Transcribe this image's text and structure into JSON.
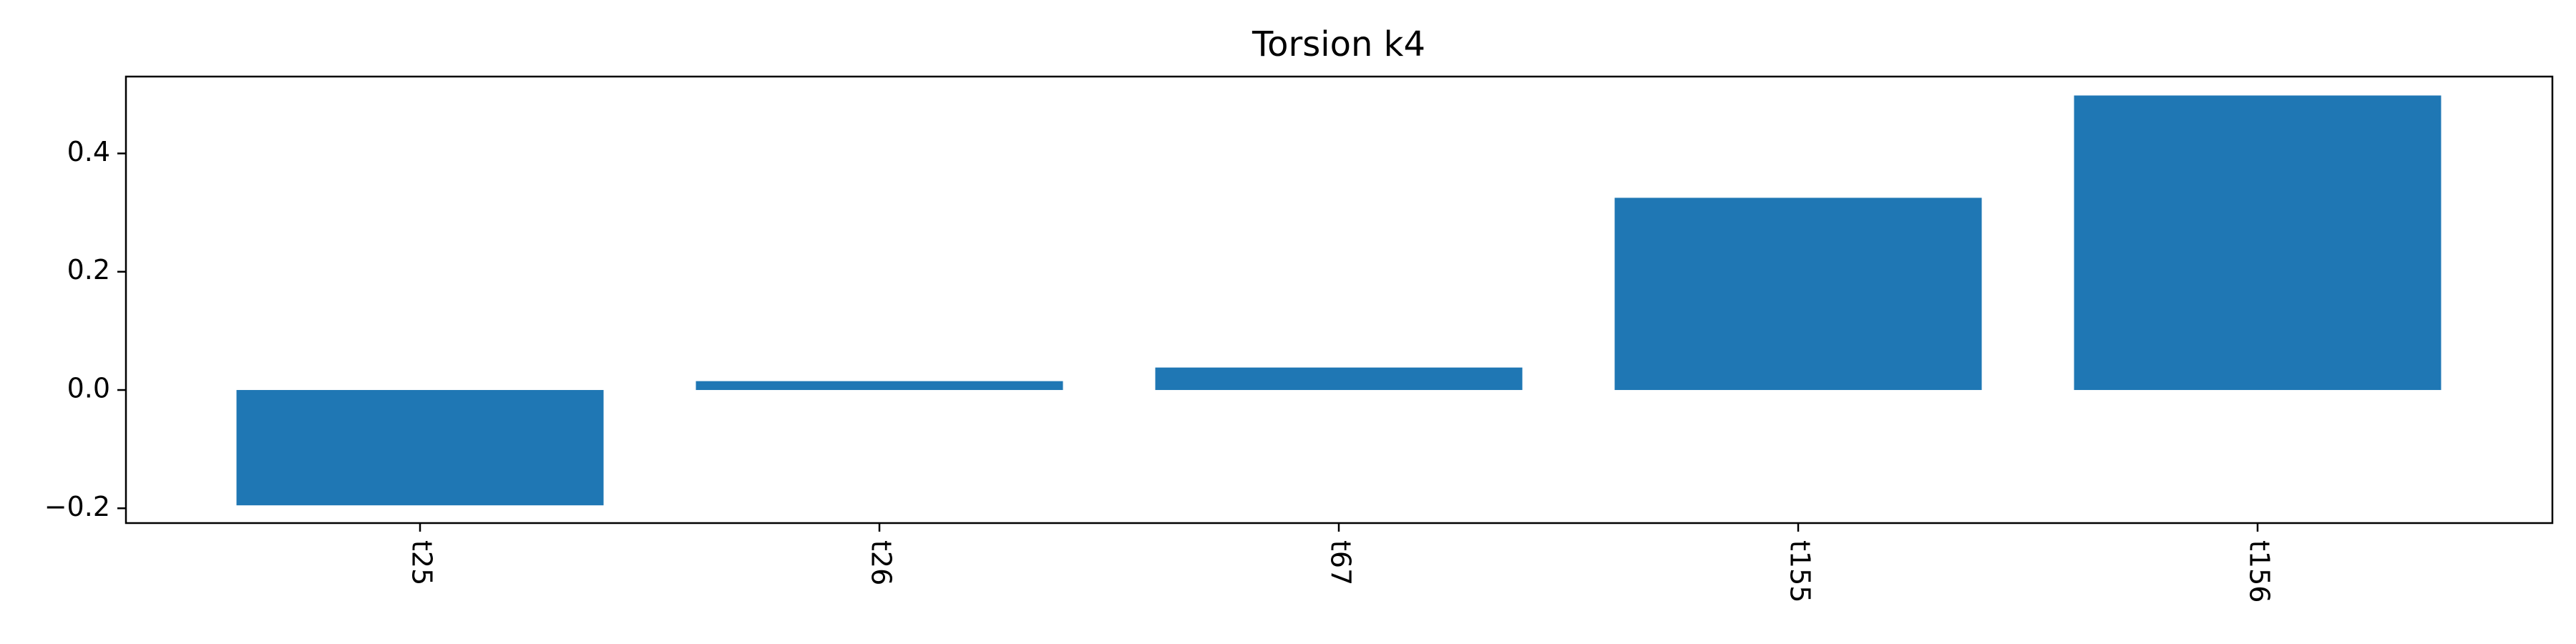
{
  "chart_data": {
    "type": "bar",
    "title": "Torsion k4",
    "xlabel": "",
    "ylabel": "",
    "categories": [
      "t25",
      "t26",
      "t67",
      "t155",
      "t156"
    ],
    "values": [
      -0.195,
      0.015,
      0.038,
      0.325,
      0.498
    ],
    "ylim": [
      -0.225,
      0.53
    ],
    "yticks": [
      -0.2,
      0.0,
      0.2,
      0.4
    ],
    "ytick_labels": [
      "−0.2",
      "0.0",
      "0.2",
      "0.4"
    ],
    "bar_color": "#1f77b4",
    "grid": false,
    "legend": "none",
    "xtick_rotation": "vertical"
  }
}
